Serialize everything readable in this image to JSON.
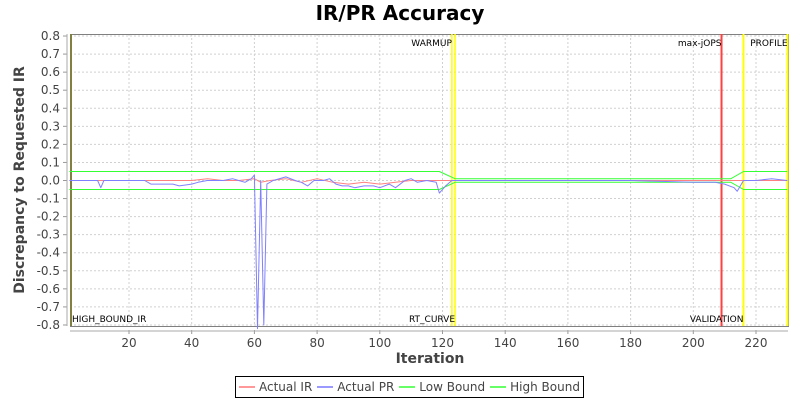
{
  "chart_data": {
    "type": "line",
    "title": "IR/PR Accuracy",
    "xlabel": "Iteration",
    "ylabel": "Discrepancy to Requested IR",
    "xlim": [
      1,
      230
    ],
    "ylim": [
      -0.82,
      0.82
    ],
    "grid": true,
    "legend_position": "bottom",
    "x_ticks": [
      20,
      40,
      60,
      80,
      100,
      120,
      140,
      160,
      180,
      200,
      220
    ],
    "y_ticks": [
      0.8,
      0.7,
      0.6,
      0.5,
      0.4,
      0.3,
      0.2,
      0.1,
      0.0,
      -0.1,
      -0.2,
      -0.3,
      -0.4,
      -0.5,
      -0.6,
      -0.7,
      -0.8
    ],
    "y_tick_labels": [
      "0.8",
      "0.7",
      "0.6",
      "0.5",
      "0.4",
      "0.3",
      "0.2",
      "0.1",
      "0.0",
      "-0.1",
      "-0.2",
      "-0.3",
      "-0.4",
      "-0.5",
      "-0.6",
      "-0.7",
      "-0.8"
    ],
    "series": [
      {
        "name": "Actual IR",
        "color": "#ff8080",
        "points": [
          [
            1,
            0
          ],
          [
            25,
            0
          ],
          [
            40,
            0.0
          ],
          [
            45,
            0.01
          ],
          [
            50,
            0.0
          ],
          [
            55,
            0.0
          ],
          [
            60,
            0.01
          ],
          [
            62,
            -0.01
          ],
          [
            65,
            0.0
          ],
          [
            70,
            0.01
          ],
          [
            75,
            -0.01
          ],
          [
            80,
            0.01
          ],
          [
            85,
            -0.01
          ],
          [
            90,
            -0.02
          ],
          [
            95,
            -0.01
          ],
          [
            100,
            -0.02
          ],
          [
            105,
            -0.01
          ],
          [
            110,
            0.0
          ],
          [
            115,
            0.0
          ],
          [
            120,
            0.0
          ],
          [
            123,
            0.0
          ],
          [
            140,
            0.0
          ],
          [
            160,
            0.0
          ],
          [
            180,
            0.0
          ],
          [
            200,
            0.0
          ],
          [
            209,
            0.0
          ],
          [
            215,
            0.0
          ],
          [
            218,
            0.0
          ],
          [
            222,
            0.0
          ],
          [
            226,
            0.0
          ],
          [
            230,
            0.0
          ]
        ]
      },
      {
        "name": "Actual PR",
        "color": "#8080ff",
        "points": [
          [
            1,
            0
          ],
          [
            10,
            0
          ],
          [
            11,
            -0.04
          ],
          [
            12,
            0
          ],
          [
            25,
            0
          ],
          [
            27,
            -0.02
          ],
          [
            30,
            -0.02
          ],
          [
            34,
            -0.02
          ],
          [
            36,
            -0.03
          ],
          [
            40,
            -0.02
          ],
          [
            42,
            -0.01
          ],
          [
            45,
            0.0
          ],
          [
            50,
            0.0
          ],
          [
            53,
            0.01
          ],
          [
            55,
            0.0
          ],
          [
            57,
            -0.01
          ],
          [
            59,
            0.01
          ],
          [
            60,
            0.03
          ],
          [
            61,
            -0.82
          ],
          [
            62,
            0.0
          ],
          [
            63,
            -0.8
          ],
          [
            64,
            -0.02
          ],
          [
            66,
            0.0
          ],
          [
            70,
            0.02
          ],
          [
            73,
            0.0
          ],
          [
            75,
            -0.01
          ],
          [
            77,
            -0.03
          ],
          [
            79,
            0.0
          ],
          [
            82,
            0.0
          ],
          [
            84,
            0.01
          ],
          [
            86,
            -0.02
          ],
          [
            88,
            -0.03
          ],
          [
            90,
            -0.03
          ],
          [
            92,
            -0.04
          ],
          [
            95,
            -0.03
          ],
          [
            98,
            -0.03
          ],
          [
            100,
            -0.04
          ],
          [
            103,
            -0.02
          ],
          [
            105,
            -0.04
          ],
          [
            108,
            0.0
          ],
          [
            110,
            0.01
          ],
          [
            112,
            -0.01
          ],
          [
            115,
            0.0
          ],
          [
            118,
            -0.01
          ],
          [
            119,
            -0.07
          ],
          [
            121,
            -0.03
          ],
          [
            123,
            0.0
          ],
          [
            140,
            0.0
          ],
          [
            160,
            0.0
          ],
          [
            180,
            0.0
          ],
          [
            200,
            -0.01
          ],
          [
            207,
            -0.01
          ],
          [
            210,
            -0.02
          ],
          [
            213,
            -0.04
          ],
          [
            214,
            -0.06
          ],
          [
            216,
            0.0
          ],
          [
            220,
            0.0
          ],
          [
            225,
            0.01
          ],
          [
            230,
            0.0
          ]
        ]
      },
      {
        "name": "Low Bound",
        "color": "#33ff33",
        "points": [
          [
            1,
            -0.05
          ],
          [
            119,
            -0.05
          ],
          [
            124,
            -0.01
          ],
          [
            212,
            -0.01
          ],
          [
            216,
            -0.05
          ],
          [
            230,
            -0.05
          ]
        ]
      },
      {
        "name": "High Bound",
        "color": "#33ff33",
        "points": [
          [
            1,
            0.05
          ],
          [
            119,
            0.05
          ],
          [
            124,
            0.01
          ],
          [
            212,
            0.01
          ],
          [
            216,
            0.05
          ],
          [
            230,
            0.05
          ]
        ]
      }
    ],
    "markers": [
      {
        "label": "HIGH_BOUND_IR",
        "x": 1,
        "color": "#808040",
        "label_position": "bottom-right"
      },
      {
        "label": "WARMUP",
        "x": 123,
        "color": "#ffff00",
        "label_position": "top-left"
      },
      {
        "label": "RT_CURVE",
        "x": 124,
        "color": "#ffff00",
        "label_position": "bottom-left"
      },
      {
        "label": "max-jOPS",
        "x": 209,
        "color": "#ff4040",
        "label_position": "top-left"
      },
      {
        "label": "VALIDATION",
        "x": 216,
        "color": "#ffff00",
        "label_position": "bottom-left"
      },
      {
        "label": "PROFILE",
        "x": 230,
        "color": "#ffff00",
        "label_position": "top-left"
      }
    ]
  },
  "legend": {
    "items": [
      {
        "label": "Actual IR",
        "color": "#ff9999"
      },
      {
        "label": "Actual PR",
        "color": "#9999ff"
      },
      {
        "label": "Low Bound",
        "color": "#66ff66"
      },
      {
        "label": "High Bound",
        "color": "#66ff66"
      }
    ]
  }
}
